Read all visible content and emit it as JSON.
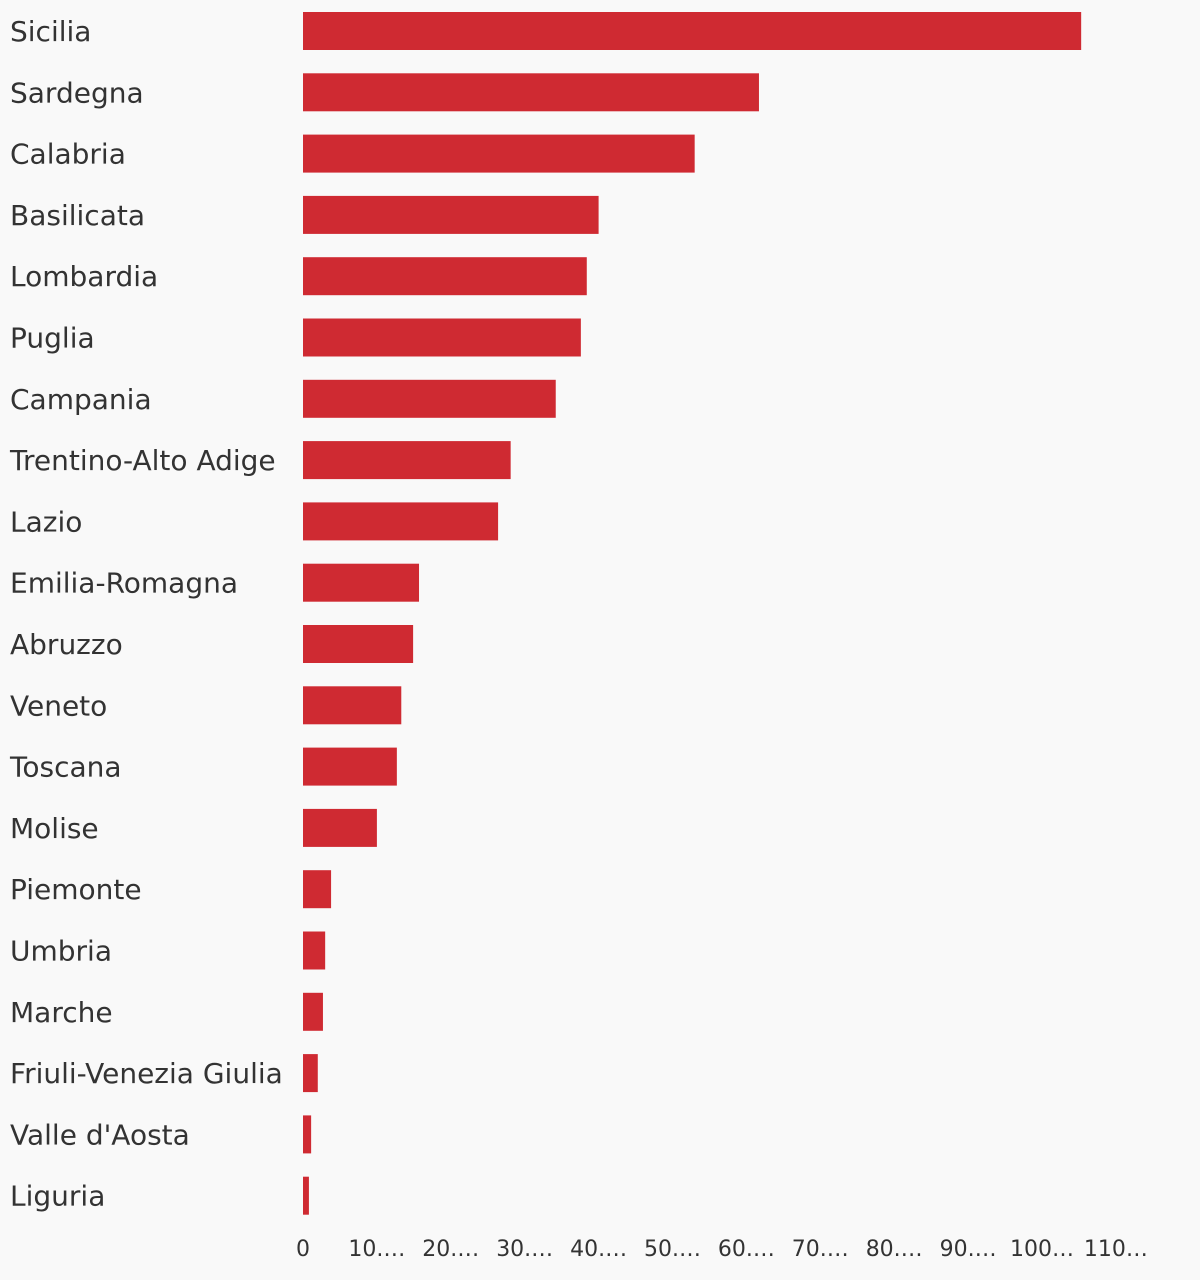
{
  "chart_data": {
    "type": "bar",
    "orientation": "horizontal",
    "categories": [
      "Sicilia",
      "Sardegna",
      "Calabria",
      "Basilicata",
      "Lombardia",
      "Puglia",
      "Campania",
      "Trentino-Alto Adige",
      "Lazio",
      "Emilia-Romagna",
      "Abruzzo",
      "Veneto",
      "Toscana",
      "Molise",
      "Piemonte",
      "Umbria",
      "Marche",
      "Friuli-Venezia Giulia",
      "Valle d'Aosta",
      "Liguria"
    ],
    "values": [
      105.3,
      61.7,
      53.0,
      40.0,
      38.4,
      37.6,
      34.2,
      28.1,
      26.4,
      15.7,
      14.9,
      13.3,
      12.7,
      10.0,
      3.8,
      3.0,
      2.7,
      2.0,
      1.1,
      0.8
    ],
    "xlim": [
      0,
      115
    ],
    "x_ticks": [
      0,
      10,
      20,
      30,
      40,
      50,
      60,
      70,
      80,
      90,
      100,
      110
    ],
    "x_tick_labels": [
      "0",
      "10.…",
      "20.…",
      "30.…",
      "40.…",
      "50.…",
      "60.…",
      "70.…",
      "80.…",
      "90.…",
      "100…",
      "110…"
    ],
    "title": "",
    "xlabel": "",
    "ylabel": "",
    "grid": false,
    "legend": "none",
    "bar_color": "#cf2a32",
    "background_color": "#f9f9f9",
    "text_color": "#333333"
  }
}
